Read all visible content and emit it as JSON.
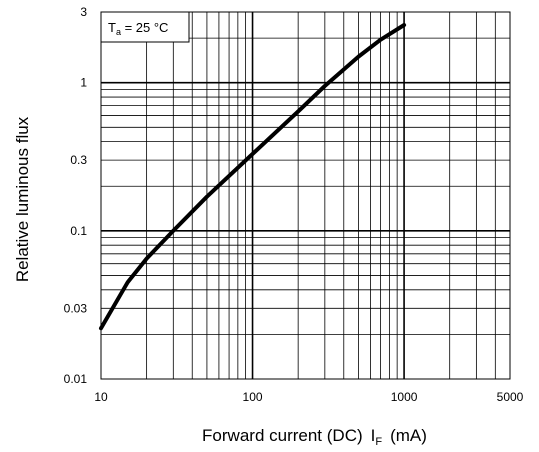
{
  "chart_data": {
    "type": "line",
    "title": "",
    "xlabel": "Forward current (DC)",
    "xlabel_symbol": "I",
    "xlabel_subscript": "F",
    "xlabel_unit": "(mA)",
    "ylabel": "Relative luminous flux",
    "x_scale": "log",
    "y_scale": "log",
    "xlim": [
      10,
      5000
    ],
    "ylim": [
      0.01,
      3
    ],
    "x_ticks": [
      10,
      100,
      1000,
      5000
    ],
    "x_tick_labels": [
      "10",
      "100",
      "1000",
      "5000"
    ],
    "y_ticks": [
      0.01,
      0.03,
      0.1,
      0.3,
      1,
      3
    ],
    "y_tick_labels": [
      "0.01",
      "0.03",
      "0.1",
      "0.3",
      "1",
      "3"
    ],
    "grid": true,
    "legend": {
      "symbol": "T",
      "subscript": "a",
      "rest": " = 25 °C",
      "position": "top-left"
    },
    "series": [
      {
        "x": [
          10,
          15,
          20,
          30,
          50,
          100,
          200,
          300,
          500,
          700,
          1000
        ],
        "y": [
          0.022,
          0.045,
          0.065,
          0.1,
          0.17,
          0.33,
          0.64,
          0.95,
          1.5,
          1.95,
          2.45
        ]
      }
    ],
    "colors": {
      "line": "#000000",
      "grid": "#000000",
      "background": "#ffffff"
    }
  }
}
